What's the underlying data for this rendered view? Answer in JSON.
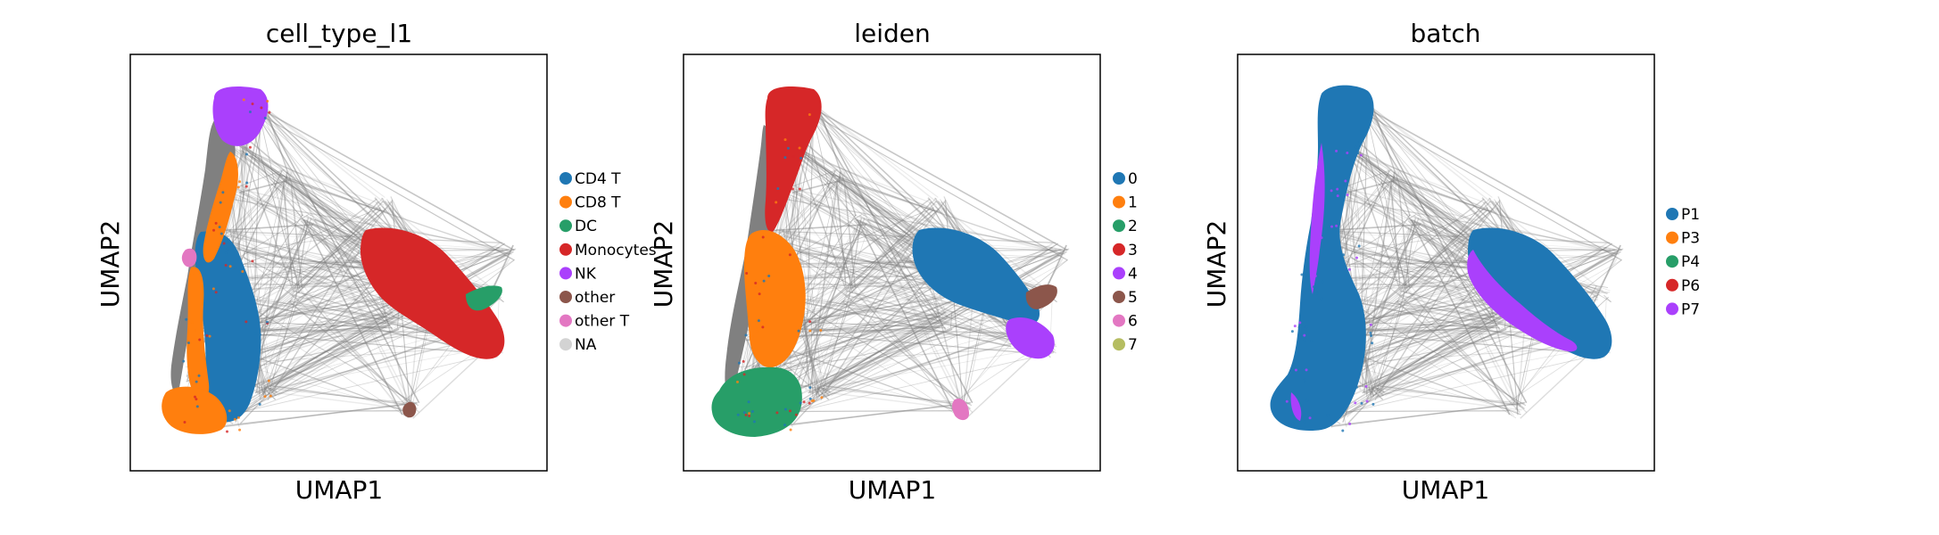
{
  "chart_data": [
    {
      "type": "scatter",
      "title": "cell_type_l1",
      "xlabel": "UMAP1",
      "ylabel": "UMAP2",
      "legend_position": "right",
      "legend": [
        {
          "label": "CD4 T",
          "color": "#1f77b4"
        },
        {
          "label": "CD8 T",
          "color": "#ff7f0e"
        },
        {
          "label": "DC",
          "color": "#279e68"
        },
        {
          "label": "Monocytes",
          "color": "#d62728"
        },
        {
          "label": "NK",
          "color": "#aa40fc"
        },
        {
          "label": "other",
          "color": "#8c564b"
        },
        {
          "label": "other T",
          "color": "#e377c2"
        },
        {
          "label": "NA",
          "color": "#d3d3d3"
        }
      ],
      "regions": [
        {
          "label": "CD4 T",
          "color": "#1f77b4"
        },
        {
          "label": "CD8 T",
          "color": "#ff7f0e"
        },
        {
          "label": "DC",
          "color": "#279e68"
        },
        {
          "label": "Monocytes",
          "color": "#d62728"
        },
        {
          "label": "NK",
          "color": "#aa40fc"
        },
        {
          "label": "other",
          "color": "#8c564b"
        },
        {
          "label": "other T",
          "color": "#e377c2"
        }
      ]
    },
    {
      "type": "scatter",
      "title": "leiden",
      "xlabel": "UMAP1",
      "ylabel": "UMAP2",
      "legend_position": "right",
      "legend": [
        {
          "label": "0",
          "color": "#1f77b4"
        },
        {
          "label": "1",
          "color": "#ff7f0e"
        },
        {
          "label": "2",
          "color": "#279e68"
        },
        {
          "label": "3",
          "color": "#d62728"
        },
        {
          "label": "4",
          "color": "#aa40fc"
        },
        {
          "label": "5",
          "color": "#8c564b"
        },
        {
          "label": "6",
          "color": "#e377c2"
        },
        {
          "label": "7",
          "color": "#b5bd61"
        }
      ],
      "regions": [
        {
          "label": "0",
          "color": "#1f77b4"
        },
        {
          "label": "1",
          "color": "#ff7f0e"
        },
        {
          "label": "2",
          "color": "#279e68"
        },
        {
          "label": "3",
          "color": "#d62728"
        },
        {
          "label": "4",
          "color": "#aa40fc"
        },
        {
          "label": "5",
          "color": "#8c564b"
        },
        {
          "label": "6",
          "color": "#e377c2"
        },
        {
          "label": "7",
          "color": "#b5bd61"
        }
      ]
    },
    {
      "type": "scatter",
      "title": "batch",
      "xlabel": "UMAP1",
      "ylabel": "UMAP2",
      "legend_position": "right",
      "legend": [
        {
          "label": "P1",
          "color": "#1f77b4"
        },
        {
          "label": "P3",
          "color": "#ff7f0e"
        },
        {
          "label": "P4",
          "color": "#279e68"
        },
        {
          "label": "P6",
          "color": "#d62728"
        },
        {
          "label": "P7",
          "color": "#aa40fc"
        }
      ],
      "regions": [
        {
          "label": "P1",
          "color": "#1f77b4"
        },
        {
          "label": "P7",
          "color": "#aa40fc"
        }
      ]
    }
  ],
  "edge_color": "#808080"
}
